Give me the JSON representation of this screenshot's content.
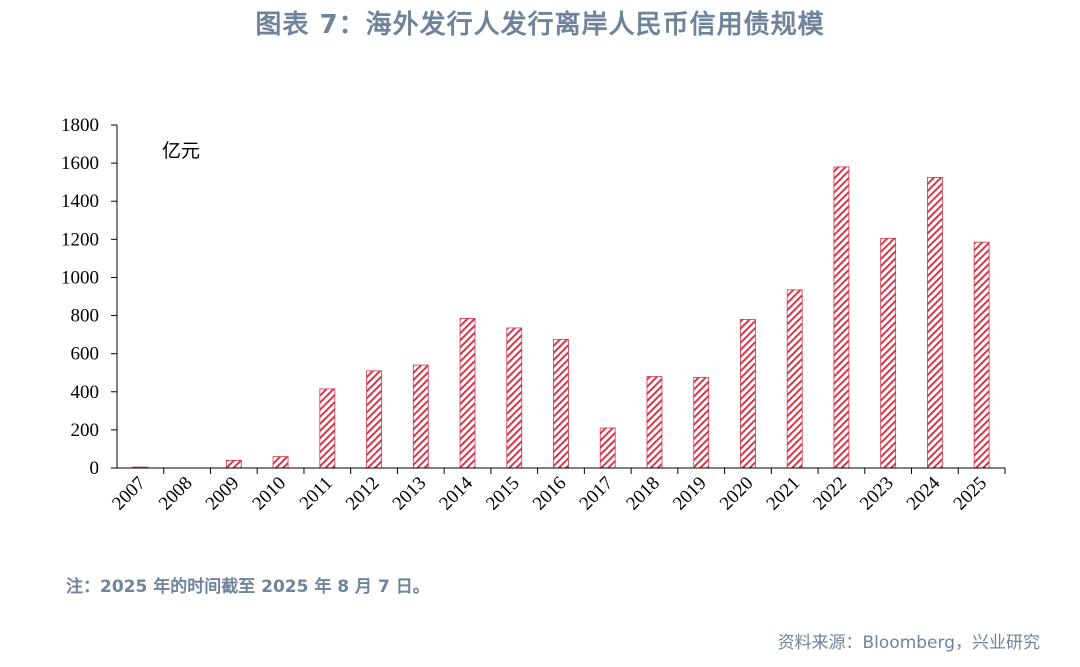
{
  "title": "图表 7：海外发行人发行离岸人民币信用债规模",
  "note": "注：2025 年的时间截至 2025 年 8 月 7 日。",
  "source": "资料来源：Bloomberg，兴业研究",
  "chart_data": {
    "type": "bar",
    "title": "图表 7：海外发行人发行离岸人民币信用债规模",
    "unit_label": "亿元",
    "categories": [
      "2007",
      "2008",
      "2009",
      "2010",
      "2011",
      "2012",
      "2013",
      "2014",
      "2015",
      "2016",
      "2017",
      "2018",
      "2019",
      "2020",
      "2021",
      "2022",
      "2023",
      "2024",
      "2025"
    ],
    "values": [
      5,
      0,
      40,
      60,
      415,
      510,
      540,
      785,
      735,
      675,
      210,
      480,
      475,
      780,
      935,
      1580,
      1205,
      1525,
      1185
    ],
    "ylim": [
      0,
      1800
    ],
    "yticks": [
      0,
      200,
      400,
      600,
      800,
      1000,
      1200,
      1400,
      1600,
      1800
    ],
    "grid": false,
    "bar_pattern": "red diagonal hatch",
    "colors": {
      "bar": "#d9364a",
      "title": "#6f849c",
      "axis": "#000000"
    }
  }
}
